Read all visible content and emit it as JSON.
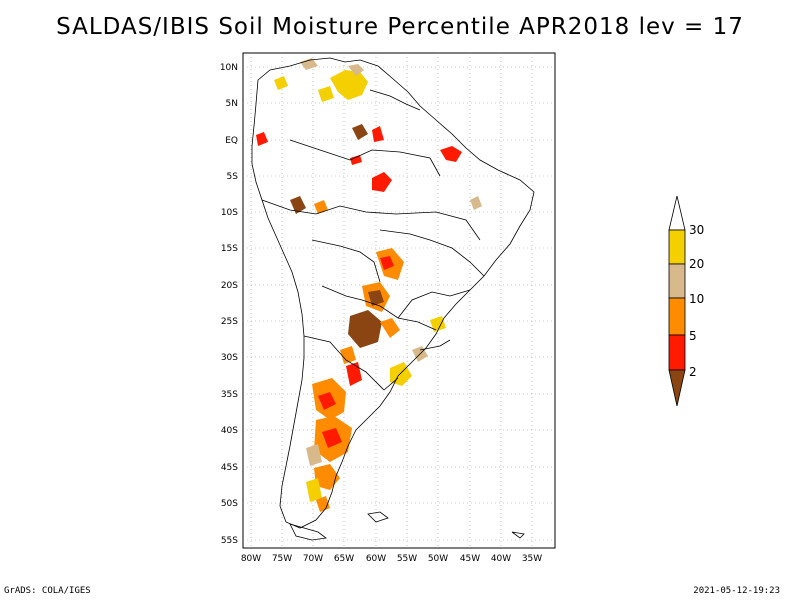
{
  "title": "SALDAS/IBIS Soil Moisture Percentile APR2018 lev = 17",
  "footer": {
    "left": "GrADS: COLA/IGES",
    "right": "2021-05-12-19:23"
  },
  "axes": {
    "lon_ticks": [
      "80W",
      "75W",
      "70W",
      "65W",
      "60W",
      "55W",
      "50W",
      "45W",
      "40W",
      "35W"
    ],
    "lat_ticks": [
      "10N",
      "5N",
      "EQ",
      "5S",
      "10S",
      "15S",
      "20S",
      "25S",
      "30S",
      "35S",
      "40S",
      "45S",
      "50S",
      "55S"
    ]
  },
  "legend": {
    "labels": [
      "30",
      "20",
      "10",
      "5",
      "2"
    ],
    "colors": {
      "above30": "#ffffff",
      "c20_30": "#f5d000",
      "c10_20": "#d8b98c",
      "c5_10": "#ff8c00",
      "c2_5": "#ff1a00",
      "below2": "#8b4513"
    }
  },
  "colors": {
    "frame": "#000000",
    "grid": "#9a9a9a",
    "land": "#ffffff"
  }
}
